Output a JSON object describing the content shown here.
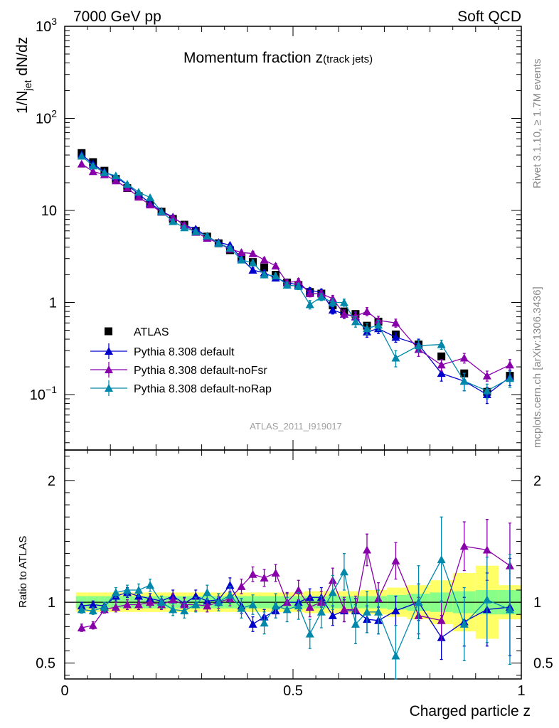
{
  "header": {
    "left": "7000 GeV pp",
    "right": "Soft QCD"
  },
  "side_labels": {
    "rivet": "Rivet 3.1.10, ≥ 1.7M events",
    "mcplots": "mcplots.cern.ch [arXiv:1306.3436]"
  },
  "plot_title": {
    "main": "Momentum fraction z",
    "sub": "(track jets)"
  },
  "analysis_id": "ATLAS_2011_I919017",
  "colors": {
    "data": "#000000",
    "default": "#0000cc",
    "noFsr": "#8800aa",
    "noRap": "#0088aa",
    "band_inner": "#88ff88",
    "band_outer": "#ffff66"
  },
  "chart_data": [
    {
      "type": "scatter",
      "title": "Momentum fraction z (track jets)",
      "ylabel": "1/N_jet dN/dz",
      "yscale": "log",
      "xlim": [
        0,
        1
      ],
      "ylim": [
        0.025,
        1000
      ],
      "y_tick_labels": [
        "10⁻¹",
        "1",
        "10",
        "10²",
        "10³"
      ],
      "legend_position": "lower-left",
      "x": [
        0.037,
        0.062,
        0.087,
        0.112,
        0.137,
        0.162,
        0.187,
        0.212,
        0.237,
        0.262,
        0.287,
        0.312,
        0.337,
        0.362,
        0.387,
        0.412,
        0.437,
        0.462,
        0.487,
        0.512,
        0.537,
        0.562,
        0.587,
        0.612,
        0.637,
        0.662,
        0.687,
        0.725,
        0.775,
        0.825,
        0.875,
        0.925,
        0.975
      ],
      "series": [
        {
          "name": "ATLAS",
          "color": "#000000",
          "values": [
            42,
            33.5,
            27,
            22,
            17.5,
            14.3,
            11.7,
            9.7,
            8.1,
            7.0,
            6.0,
            5.2,
            4.4,
            3.7,
            3.1,
            2.75,
            2.4,
            2.0,
            1.65,
            1.55,
            1.3,
            1.25,
            0.93,
            0.8,
            0.75,
            0.56,
            0.62,
            0.45,
            0.35,
            0.26,
            0.17,
            0.107,
            0.16
          ]
        },
        {
          "name": "Pythia 8.308 default",
          "color": "#0000cc",
          "values": [
            40.5,
            32,
            26.3,
            23.0,
            19.0,
            15.0,
            12.0,
            9.8,
            8.5,
            6.9,
            6.3,
            5.2,
            4.5,
            4.2,
            3.0,
            2.25,
            2.1,
            1.85,
            1.65,
            1.55,
            1.35,
            1.3,
            0.83,
            0.75,
            0.7,
            0.48,
            0.52,
            0.42,
            0.35,
            0.17,
            0.14,
            0.1,
            0.155
          ],
          "errors": [
            1.5,
            1.3,
            1.0,
            1.0,
            0.8,
            0.7,
            0.5,
            0.4,
            0.4,
            0.35,
            0.3,
            0.3,
            0.25,
            0.2,
            0.2,
            0.15,
            0.15,
            0.13,
            0.12,
            0.12,
            0.1,
            0.1,
            0.08,
            0.08,
            0.08,
            0.06,
            0.06,
            0.05,
            0.05,
            0.03,
            0.03,
            0.02,
            0.03
          ]
        },
        {
          "name": "Pythia 8.308 default-noFsr",
          "color": "#8800aa",
          "values": [
            32,
            26.5,
            24.5,
            21.0,
            17.5,
            14.0,
            11.5,
            9.6,
            8.4,
            7.0,
            5.8,
            5.0,
            4.4,
            3.8,
            3.5,
            3.4,
            2.9,
            2.5,
            1.65,
            1.7,
            1.25,
            1.25,
            1.1,
            0.75,
            0.71,
            0.8,
            0.64,
            0.6,
            0.31,
            0.21,
            0.25,
            0.16,
            0.21
          ],
          "errors": [
            1.2,
            1.0,
            0.9,
            0.8,
            0.7,
            0.6,
            0.5,
            0.4,
            0.4,
            0.35,
            0.3,
            0.3,
            0.25,
            0.2,
            0.2,
            0.2,
            0.18,
            0.15,
            0.12,
            0.12,
            0.1,
            0.1,
            0.09,
            0.08,
            0.08,
            0.08,
            0.07,
            0.06,
            0.05,
            0.03,
            0.03,
            0.02,
            0.03
          ]
        },
        {
          "name": "Pythia 8.308 default-noRap",
          "color": "#0088aa",
          "values": [
            39,
            30.5,
            25.8,
            23.8,
            19.3,
            15.8,
            13.8,
            9.7,
            7.6,
            6.5,
            5.9,
            5.3,
            4.4,
            3.9,
            2.9,
            2.7,
            2.0,
            1.95,
            1.55,
            1.5,
            0.95,
            1.15,
            1.0,
            1.0,
            0.62,
            0.52,
            0.57,
            0.25,
            0.34,
            0.35,
            0.14,
            0.11,
            0.15
          ],
          "errors": [
            1.5,
            1.3,
            1.0,
            1.0,
            0.8,
            0.7,
            0.6,
            0.4,
            0.4,
            0.35,
            0.3,
            0.3,
            0.25,
            0.2,
            0.2,
            0.2,
            0.15,
            0.14,
            0.12,
            0.12,
            0.1,
            0.1,
            0.1,
            0.09,
            0.08,
            0.07,
            0.07,
            0.05,
            0.05,
            0.04,
            0.03,
            0.02,
            0.03
          ]
        }
      ]
    },
    {
      "type": "scatter",
      "xlabel": "Charged particle z",
      "ylabel": "Ratio to ATLAS",
      "xlim": [
        0,
        1
      ],
      "ylim": [
        0.37,
        2.25
      ],
      "x_tick_labels": [
        "0",
        "0.5",
        "1"
      ],
      "y_tick_labels": [
        "0.5",
        "1",
        "2"
      ],
      "x": [
        0.037,
        0.062,
        0.087,
        0.112,
        0.137,
        0.162,
        0.187,
        0.212,
        0.237,
        0.262,
        0.287,
        0.312,
        0.337,
        0.362,
        0.387,
        0.412,
        0.437,
        0.462,
        0.487,
        0.512,
        0.537,
        0.562,
        0.587,
        0.612,
        0.637,
        0.662,
        0.687,
        0.725,
        0.775,
        0.825,
        0.875,
        0.925,
        0.975
      ],
      "band_inner": [
        0.05,
        0.05,
        0.05,
        0.05,
        0.05,
        0.05,
        0.05,
        0.05,
        0.05,
        0.05,
        0.05,
        0.05,
        0.05,
        0.05,
        0.05,
        0.05,
        0.05,
        0.05,
        0.05,
        0.05,
        0.05,
        0.05,
        0.05,
        0.05,
        0.05,
        0.05,
        0.05,
        0.06,
        0.07,
        0.08,
        0.09,
        0.1,
        0.1
      ],
      "band_outer": [
        0.08,
        0.08,
        0.08,
        0.08,
        0.08,
        0.08,
        0.08,
        0.08,
        0.08,
        0.08,
        0.08,
        0.08,
        0.08,
        0.08,
        0.08,
        0.08,
        0.08,
        0.08,
        0.08,
        0.08,
        0.09,
        0.09,
        0.09,
        0.09,
        0.09,
        0.1,
        0.1,
        0.12,
        0.14,
        0.18,
        0.24,
        0.3,
        0.14
      ],
      "series": [
        {
          "name": "Pythia 8.308 default",
          "color": "#0000cc",
          "values": [
            0.97,
            0.98,
            0.97,
            1.05,
            1.08,
            1.05,
            1.03,
            1.01,
            1.05,
            0.99,
            1.05,
            1.01,
            1.02,
            1.14,
            0.97,
            0.82,
            0.88,
            0.93,
            1.0,
            1.0,
            1.04,
            1.04,
            0.89,
            0.93,
            0.93,
            0.86,
            0.85,
            0.93,
            1.0,
            0.71,
            0.84,
            0.94,
            0.96
          ],
          "errors": [
            0.03,
            0.03,
            0.03,
            0.04,
            0.04,
            0.04,
            0.04,
            0.04,
            0.05,
            0.05,
            0.05,
            0.05,
            0.05,
            0.06,
            0.06,
            0.06,
            0.06,
            0.06,
            0.07,
            0.07,
            0.07,
            0.08,
            0.08,
            0.09,
            0.1,
            0.11,
            0.11,
            0.12,
            0.15,
            0.18,
            0.2,
            0.3,
            0.4
          ]
        },
        {
          "name": "Pythia 8.308 default-noFsr",
          "color": "#8800aa",
          "values": [
            0.79,
            0.81,
            0.94,
            0.96,
            0.98,
            0.98,
            1.0,
            0.98,
            1.02,
            0.98,
            0.98,
            0.97,
            1.0,
            1.03,
            1.13,
            1.23,
            1.2,
            1.24,
            1.0,
            1.1,
            0.96,
            1.0,
            1.18,
            0.94,
            0.94,
            1.43,
            1.03,
            1.34,
            0.89,
            0.85,
            1.46,
            1.43,
            1.3
          ],
          "errors": [
            0.03,
            0.03,
            0.03,
            0.04,
            0.04,
            0.04,
            0.04,
            0.04,
            0.05,
            0.05,
            0.05,
            0.05,
            0.05,
            0.06,
            0.06,
            0.06,
            0.07,
            0.07,
            0.08,
            0.08,
            0.08,
            0.09,
            0.1,
            0.1,
            0.11,
            0.13,
            0.13,
            0.15,
            0.15,
            0.16,
            0.2,
            0.25,
            0.35
          ]
        },
        {
          "name": "Pythia 8.308 default-noRap",
          "color": "#0088aa",
          "values": [
            0.94,
            0.93,
            0.96,
            1.08,
            1.1,
            1.1,
            1.14,
            1.0,
            0.94,
            0.93,
            0.98,
            1.08,
            1.0,
            1.06,
            0.95,
            0.98,
            0.83,
            0.97,
            0.94,
            0.97,
            0.74,
            0.92,
            1.08,
            1.25,
            0.82,
            0.92,
            0.92,
            0.56,
            1.0,
            1.35,
            0.82,
            1.02,
            0.94
          ],
          "errors": [
            0.03,
            0.03,
            0.04,
            0.04,
            0.04,
            0.05,
            0.05,
            0.05,
            0.05,
            0.06,
            0.06,
            0.06,
            0.07,
            0.07,
            0.08,
            0.08,
            0.09,
            0.1,
            0.1,
            0.11,
            0.12,
            0.13,
            0.14,
            0.15,
            0.16,
            0.17,
            0.18,
            0.25,
            0.3,
            0.35,
            0.3,
            0.35,
            0.45
          ]
        }
      ]
    }
  ]
}
